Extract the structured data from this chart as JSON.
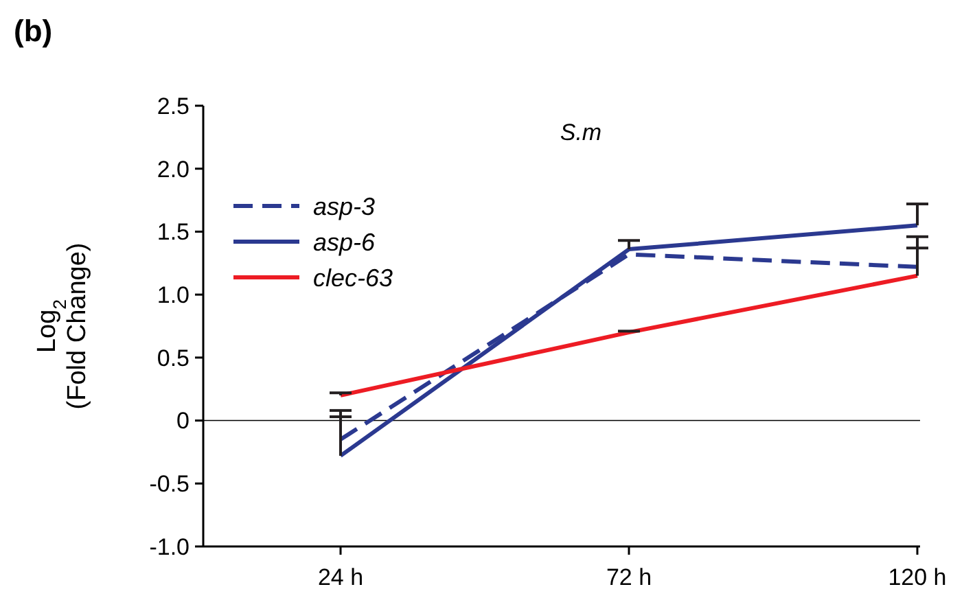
{
  "chart_data": {
    "type": "line",
    "title": "(b)",
    "subtitle": "S.m",
    "ylabel": "Log$_{2}$\n(Fold Change)",
    "categories": [
      "24 h",
      "72 h",
      "120 h"
    ],
    "series": [
      {
        "name": "asp-3",
        "color": "#2b3990",
        "line_style": "dashed",
        "values": [
          -0.15,
          1.32,
          1.22
        ],
        "errors": [
          [
            -0.15,
            0.03
          ],
          null,
          [
            1.22,
            1.46
          ]
        ]
      },
      {
        "name": "asp-6",
        "color": "#2b3990",
        "line_style": "solid",
        "values": [
          -0.28,
          1.36,
          1.55
        ],
        "errors": [
          [
            -0.28,
            0.08
          ],
          [
            1.36,
            1.43
          ],
          [
            1.55,
            1.72
          ]
        ]
      },
      {
        "name": "clec-63",
        "color": "#ed1c24",
        "line_style": "solid",
        "values": [
          0.2,
          0.7,
          1.15
        ],
        "errors": [
          [
            0.2,
            0.22
          ],
          [
            0.7,
            0.71
          ],
          [
            1.15,
            1.37
          ]
        ]
      }
    ],
    "ylim": [
      -1,
      2.5
    ],
    "yticks": [
      {
        "value": -1,
        "label": "-1.0"
      },
      {
        "value": -0.5,
        "label": "-0.5"
      },
      0,
      {
        "value": 0.5,
        "label": "0.5"
      },
      {
        "value": 1,
        "label": "1.0"
      },
      {
        "value": 1.5,
        "label": "1.5"
      },
      {
        "value": 2,
        "label": "2.0"
      },
      {
        "value": 2.5,
        "label": "2.5"
      }
    ],
    "ref_lines": [
      {
        "axis": "y",
        "value": 0,
        "color": "#000000"
      }
    ],
    "legend": "top left",
    "grid": false
  }
}
